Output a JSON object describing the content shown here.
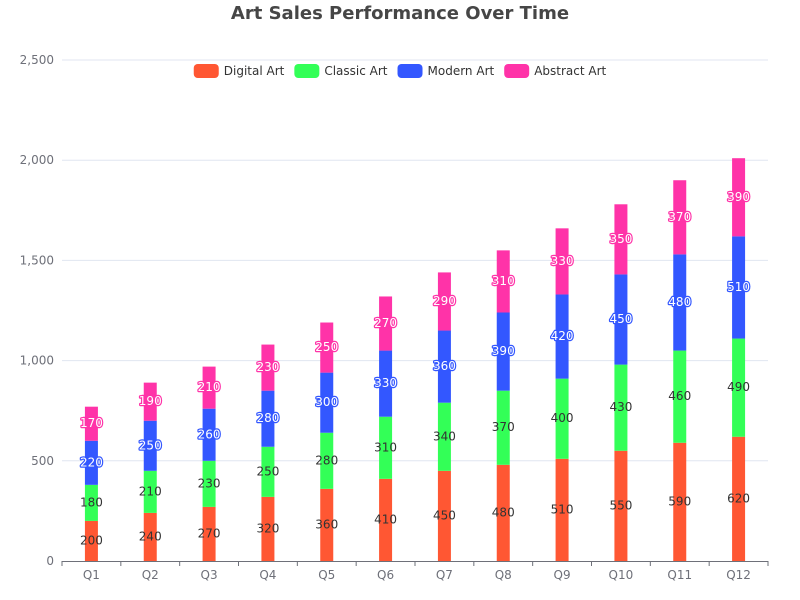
{
  "chart_data": {
    "type": "bar",
    "stacked": true,
    "title": "Art Sales Performance Over Time",
    "xlabel": "",
    "ylabel": "",
    "categories": [
      "Q1",
      "Q2",
      "Q3",
      "Q4",
      "Q5",
      "Q6",
      "Q7",
      "Q8",
      "Q9",
      "Q10",
      "Q11",
      "Q12"
    ],
    "ylim": [
      0,
      2500
    ],
    "yticks": [
      0,
      500,
      1000,
      1500,
      2000,
      2500
    ],
    "ytick_labels": [
      "0",
      "500",
      "1,000",
      "1,500",
      "2,000",
      "2,500"
    ],
    "grid": true,
    "legend_position": "top-center",
    "series": [
      {
        "name": "Digital Art",
        "color": "#ff5733",
        "label_style": "dark",
        "values": [
          200,
          240,
          270,
          320,
          360,
          410,
          450,
          480,
          510,
          550,
          590,
          620
        ]
      },
      {
        "name": "Classic Art",
        "color": "#33ff57",
        "label_style": "dark",
        "values": [
          180,
          210,
          230,
          250,
          280,
          310,
          340,
          370,
          400,
          430,
          460,
          490
        ]
      },
      {
        "name": "Modern Art",
        "color": "#3357ff",
        "label_style": "outline",
        "values": [
          220,
          250,
          260,
          280,
          300,
          330,
          360,
          390,
          420,
          450,
          480,
          510
        ]
      },
      {
        "name": "Abstract Art",
        "color": "#ff33a8",
        "label_style": "outline",
        "values": [
          170,
          190,
          210,
          230,
          250,
          270,
          290,
          310,
          330,
          350,
          370,
          390
        ]
      }
    ]
  }
}
